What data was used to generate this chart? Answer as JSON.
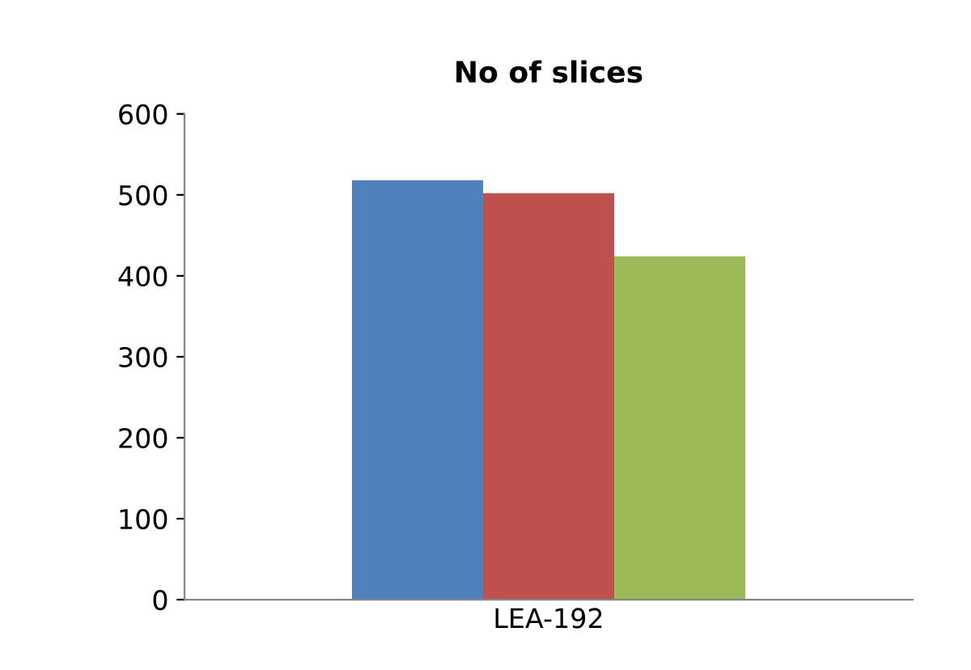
{
  "chart_data": {
    "type": "bar",
    "title": "No of slices",
    "categories": [
      "LEA-192"
    ],
    "series": [
      {
        "color": "#4f81bd",
        "values": [
          518
        ]
      },
      {
        "color": "#c0504d",
        "values": [
          502
        ]
      },
      {
        "color": "#9bbb59",
        "values": [
          424
        ]
      }
    ],
    "ylim": [
      0,
      600
    ],
    "yticks": [
      0,
      100,
      200,
      300,
      400,
      500,
      600
    ],
    "grid": false
  }
}
